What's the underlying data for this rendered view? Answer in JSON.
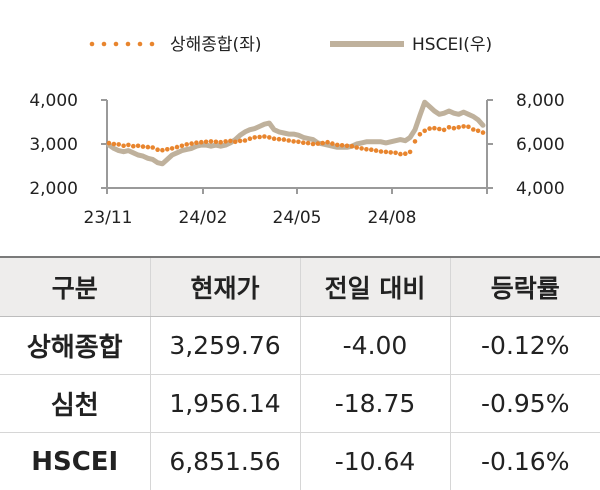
{
  "chart_data": {
    "type": "line",
    "x_start": "2023-11",
    "x_end": "2024-10",
    "x_tick_labels": [
      "23/11",
      "24/02",
      "24/05",
      "24/08"
    ],
    "y_left": {
      "ticks": [
        "4,000",
        "3,000",
        "2,000"
      ],
      "range": [
        2000,
        4000
      ]
    },
    "y_right": {
      "ticks": [
        "8,000",
        "6,000",
        "4,000"
      ],
      "range": [
        4000,
        8000
      ]
    },
    "grid": false,
    "legend_position": "top",
    "series": [
      {
        "name": "상해종합(좌)",
        "axis": "left",
        "style": "dotted",
        "color": "#e8852e",
        "values": [
          3020,
          3000,
          2990,
          2960,
          2980,
          2950,
          2960,
          2940,
          2930,
          2920,
          2870,
          2860,
          2880,
          2900,
          2930,
          2960,
          2990,
          3010,
          3030,
          3040,
          3050,
          3060,
          3050,
          3040,
          3060,
          3070,
          3050,
          3070,
          3080,
          3120,
          3150,
          3160,
          3170,
          3150,
          3120,
          3110,
          3100,
          3080,
          3060,
          3050,
          3030,
          3020,
          3000,
          3010,
          3020,
          3040,
          3010,
          2980,
          2970,
          2960,
          2950,
          2920,
          2900,
          2880,
          2870,
          2850,
          2830,
          2820,
          2810,
          2800,
          2770,
          2780,
          2820,
          3060,
          3220,
          3300,
          3350,
          3360,
          3340,
          3320,
          3380,
          3360,
          3380,
          3400,
          3390,
          3330,
          3300,
          3260
        ]
      },
      {
        "name": "HSCEI(우)",
        "axis": "right",
        "style": "solid",
        "color": "#bfb19c",
        "values": [
          5950,
          5800,
          5700,
          5650,
          5700,
          5600,
          5500,
          5450,
          5350,
          5300,
          5150,
          5100,
          5300,
          5500,
          5600,
          5700,
          5750,
          5800,
          5900,
          5950,
          5950,
          5900,
          5950,
          5900,
          5950,
          6050,
          6200,
          6400,
          6550,
          6650,
          6700,
          6800,
          6900,
          6950,
          6650,
          6550,
          6500,
          6450,
          6450,
          6400,
          6300,
          6250,
          6200,
          6050,
          6000,
          5950,
          5900,
          5850,
          5850,
          5850,
          5900,
          6000,
          6050,
          6100,
          6100,
          6100,
          6100,
          6050,
          6100,
          6150,
          6200,
          6150,
          6300,
          6650,
          7300,
          7900,
          7700,
          7500,
          7350,
          7400,
          7500,
          7400,
          7350,
          7450,
          7350,
          7250,
          7100,
          6850
        ]
      }
    ]
  },
  "table": {
    "headers": [
      "구분",
      "현재가",
      "전일 대비",
      "등락률"
    ],
    "rows": [
      {
        "name": "상해종합",
        "price": "3,259.76",
        "change": "-4.00",
        "pct": "-0.12%"
      },
      {
        "name": "심천",
        "price": "1,956.14",
        "change": "-18.75",
        "pct": "-0.95%"
      },
      {
        "name": "HSCEI",
        "price": "6,851.56",
        "change": "-10.64",
        "pct": "-0.16%"
      }
    ]
  }
}
